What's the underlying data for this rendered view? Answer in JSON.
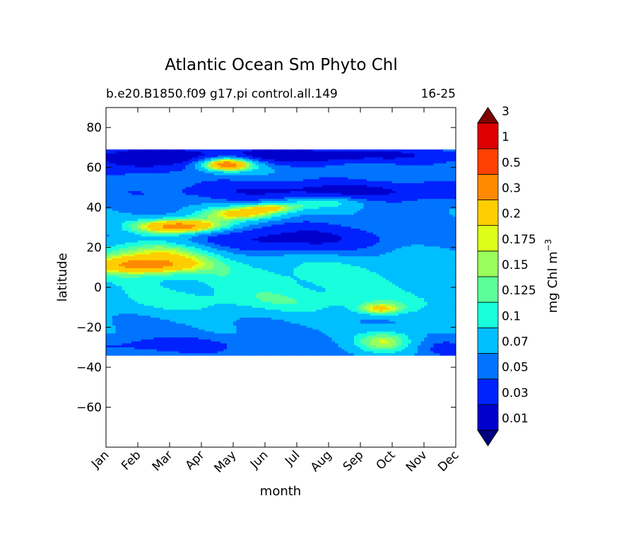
{
  "chart_data": {
    "type": "heatmap",
    "subtype": "filled-contour",
    "title": "Atlantic Ocean Sm Phyto Chl",
    "subtitle_left": "b.e20.B1850.f09 g17.pi control.all.149",
    "subtitle_right": "16-25",
    "xlabel": "month",
    "ylabel": "latitude",
    "colorbar_label": "mg Chl m",
    "colorbar_label_exponent": "−3",
    "x_categories": [
      "Jan",
      "Feb",
      "Mar",
      "Apr",
      "May",
      "Jun",
      "Jul",
      "Aug",
      "Sep",
      "Oct",
      "Nov",
      "Dec"
    ],
    "xlim": [
      0,
      11
    ],
    "ylim": [
      -80,
      90
    ],
    "yticks": [
      80,
      60,
      40,
      20,
      0,
      -20,
      -40,
      -60
    ],
    "ytick_labels": [
      "80",
      "60",
      "40",
      "20",
      "0",
      "−20",
      "−40",
      "−60"
    ],
    "data_lat_range": [
      -34,
      69
    ],
    "levels": [
      0.01,
      0.03,
      0.05,
      0.07,
      0.1,
      0.125,
      0.15,
      0.175,
      0.2,
      0.3,
      0.5,
      1,
      3
    ],
    "level_labels": [
      "0.01",
      "0.03",
      "0.05",
      "0.07",
      "0.1",
      "0.125",
      "0.15",
      "0.175",
      "0.2",
      "0.3",
      "0.5",
      "1",
      "3"
    ],
    "colors": [
      "#00007f",
      "#0000cd",
      "#0022ff",
      "#0074ff",
      "#00bfff",
      "#19ffdd",
      "#5cff99",
      "#99ff5c",
      "#ddff19",
      "#ffce00",
      "#ff8a00",
      "#ff4000",
      "#dd0000",
      "#7f0000"
    ],
    "extend": "both",
    "features": [
      {
        "name": "high-lat-low",
        "lat": [
          53,
          69
        ],
        "month": [
          0,
          11
        ],
        "value": 0.01
      },
      {
        "name": "spring-bloom-north",
        "lat": [
          58,
          66
        ],
        "month": [
          2.5,
          4.5
        ],
        "value": 0.3
      },
      {
        "name": "subtropical-bloom",
        "lat": [
          27,
          36
        ],
        "month": [
          0.5,
          4
        ],
        "value": 0.3
      },
      {
        "name": "tropical-band",
        "lat": [
          6,
          15
        ],
        "month": [
          0,
          3
        ],
        "value": 0.175
      },
      {
        "name": "gyre-low",
        "lat": [
          15,
          32
        ],
        "month": [
          3.5,
          9.5
        ],
        "value": 0.05
      },
      {
        "name": "southern-spring-bloom",
        "lat": [
          -33,
          -17
        ],
        "month": [
          7.5,
          9.5
        ],
        "value": 0.2
      }
    ]
  }
}
